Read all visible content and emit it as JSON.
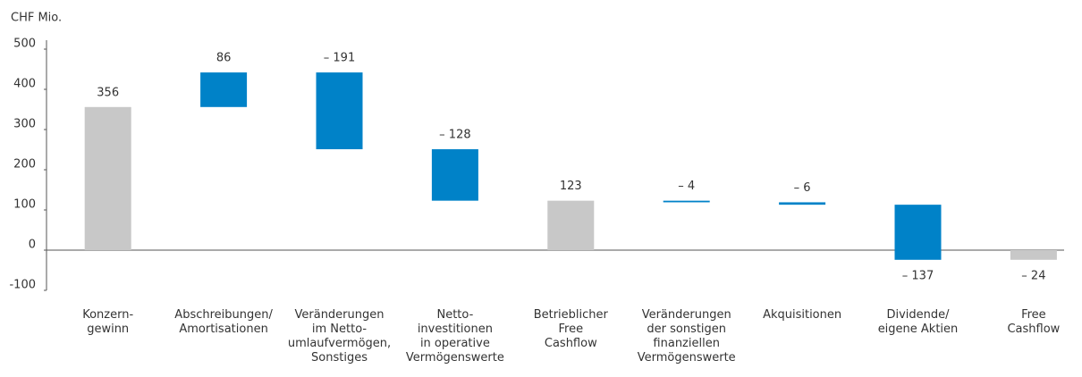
{
  "chart_data": {
    "type": "waterfall",
    "y_axis_label": "CHF Mio.",
    "categories": [
      [
        "Konzern-",
        "gewinn"
      ],
      [
        "Abschreibungen/",
        "Amortisationen"
      ],
      [
        "Veränderungen",
        "im Netto-",
        "umlaufvermögen,",
        "Sonstiges"
      ],
      [
        "Netto-",
        "investitionen",
        "in operative",
        "Vermögenswerte"
      ],
      [
        "Betrieblicher",
        "Free",
        "Cashflow"
      ],
      [
        "Veränderungen",
        "der sonstigen",
        "finanziellen",
        "Vermögenswerte"
      ],
      [
        "Akquisitionen"
      ],
      [
        "Dividende/",
        "eigene Aktien"
      ],
      [
        "Free",
        "Cashflow"
      ]
    ],
    "values": [
      356,
      86,
      -191,
      -128,
      123,
      -4,
      -6,
      -137,
      -24
    ],
    "value_labels": [
      "356",
      "86",
      "– 191",
      "– 128",
      "123",
      "– 4",
      "– 6",
      "– 137",
      "– 24"
    ],
    "totals": [
      0,
      4,
      8
    ],
    "colors": [
      "#c8c8c8",
      "#0082c8",
      "#0082c8",
      "#0082c8",
      "#c8c8c8",
      "#0082c8",
      "#0082c8",
      "#0082c8",
      "#c8c8c8"
    ],
    "ylim": [
      -100,
      500
    ],
    "yticks": [
      -100,
      0,
      100,
      200,
      300,
      400,
      500
    ]
  }
}
